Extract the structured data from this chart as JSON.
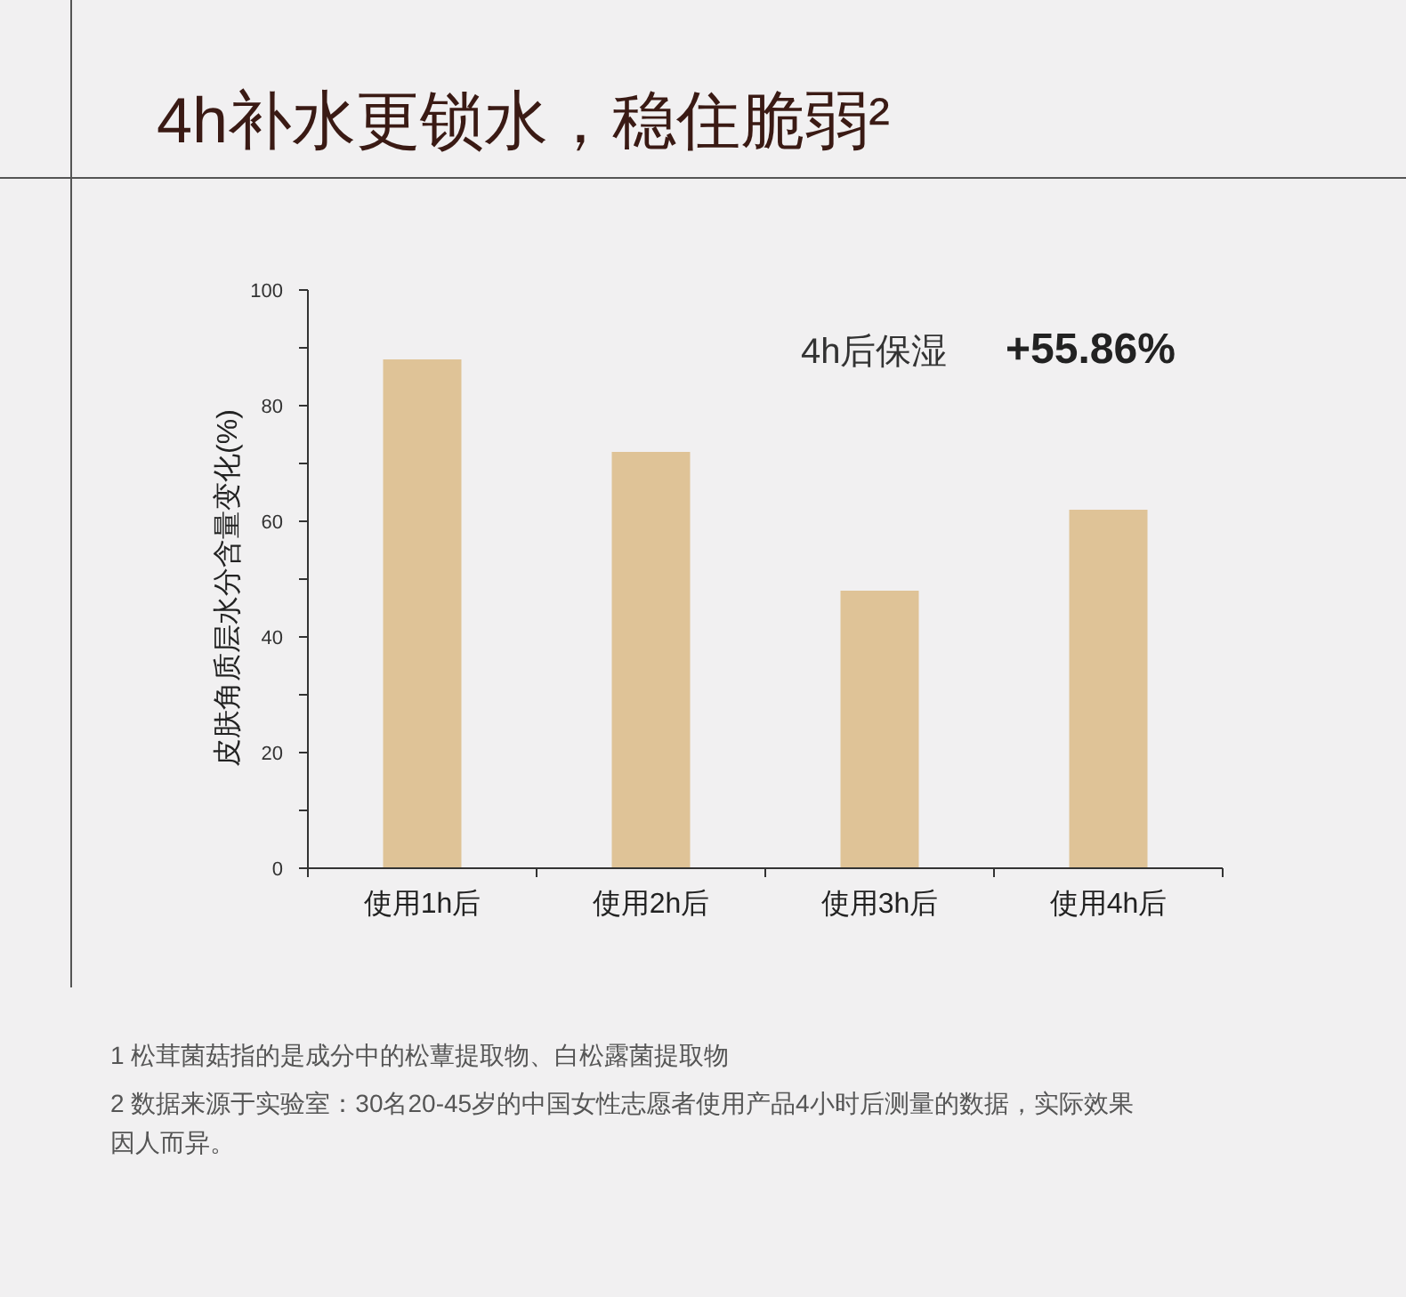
{
  "chart_data": {
    "type": "bar",
    "title": "4h补水更锁水，稳住脆弱²",
    "ylabel": "皮肤角质层水分含量变化(%)",
    "categories": [
      "使用1h后",
      "使用2h后",
      "使用3h后",
      "使用4h后"
    ],
    "values": [
      88,
      72,
      48,
      62
    ],
    "color": "#dfc397",
    "ylim": [
      0,
      100
    ],
    "yticks": [
      0,
      {
        "value": 10,
        "label": null
      },
      20,
      {
        "value": 30,
        "label": null
      },
      40,
      {
        "value": 50,
        "label": null
      },
      60,
      {
        "value": 70,
        "label": null
      },
      80,
      {
        "value": 90,
        "label": null
      },
      100
    ],
    "grid": false,
    "annotations": [
      "4h后保湿",
      "+55.86%",
      "1 松茸菌菇指的是成分中的松蕈提取物、白松露菌提取物",
      "2 数据来源于实验室：30名20-45岁的中国女性志愿者使用产品4小时后测量的数据，实际效果因人而异。"
    ]
  }
}
